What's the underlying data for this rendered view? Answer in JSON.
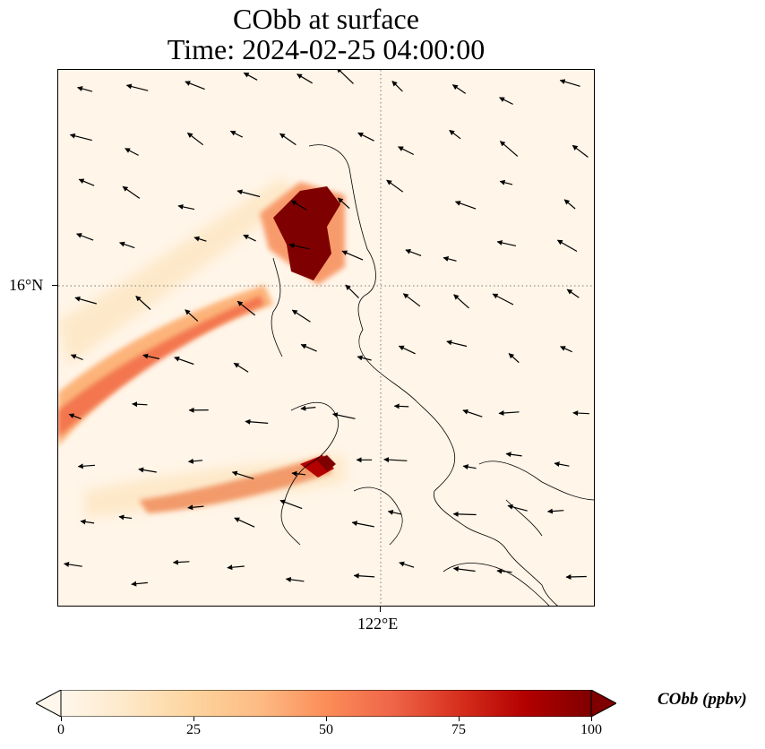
{
  "title": {
    "line1": "CObb at surface",
    "line2": "Time: 2024-02-25 04:00:00"
  },
  "map": {
    "lat_label": "16°N",
    "lon_label": "122°E",
    "gridline_color": "#7a7a7a",
    "coastline_color": "#000000"
  },
  "colorbar": {
    "label": "CObb (ppbv)",
    "ticks": [
      "0",
      "25",
      "50",
      "75",
      "100"
    ],
    "colormap": "OrRd",
    "min": 0,
    "max": 100,
    "extend": "both",
    "stops": [
      "#fff7ec",
      "#fee8c8",
      "#fdd49e",
      "#fdbb84",
      "#fc8d59",
      "#ef6548",
      "#d7301f",
      "#b30000",
      "#7f0000"
    ]
  }
}
